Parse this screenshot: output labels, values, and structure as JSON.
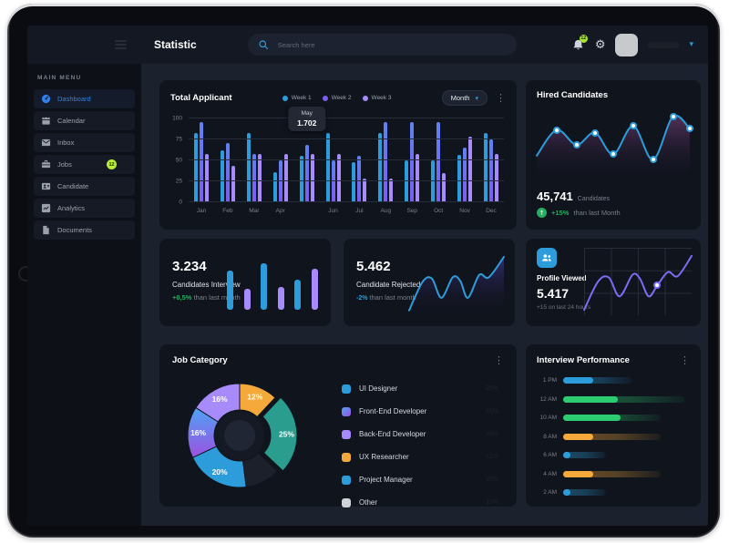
{
  "glyphs": {
    "kebab": "⋮",
    "chevron_down": "▾",
    "arrow_up": "↑",
    "gear": "⚙"
  },
  "topbar": {
    "title": "Statistic",
    "search_placeholder": "Search here",
    "notification_badge": "12"
  },
  "sidebar": {
    "section": "MAIN MENU",
    "items": [
      {
        "label": "Dashboard",
        "icon": "dashboard-icon",
        "active": true
      },
      {
        "label": "Calendar",
        "icon": "calendar-icon"
      },
      {
        "label": "Inbox",
        "icon": "inbox-icon"
      },
      {
        "label": "Jobs",
        "icon": "jobs-icon",
        "badge": "12"
      },
      {
        "label": "Candidate",
        "icon": "candidate-icon"
      },
      {
        "label": "Analytics",
        "icon": "analytics-icon"
      },
      {
        "label": "Documents",
        "icon": "documents-icon"
      }
    ]
  },
  "total_applicant": {
    "title": "Total Applicant",
    "period": "Month",
    "tooltip": {
      "label": "May",
      "value": "1.702"
    }
  },
  "hired": {
    "title": "Hired Candidates",
    "value": "45,741",
    "unit": "Candidates",
    "delta": "+15%",
    "note": "than last Month"
  },
  "interviewed": {
    "value": "3.234",
    "label": "Candidates Interview",
    "delta": "+0,5%",
    "note": "than last month"
  },
  "rejected": {
    "value": "5.462",
    "label": "Candidate Rejected",
    "delta": "-2%",
    "note": "than last month"
  },
  "profile": {
    "title": "Profile Viewed",
    "value": "5.417",
    "note": "+15 on last 24 hours"
  },
  "job_category": {
    "title": "Job Category"
  },
  "performance": {
    "title": "Interview Performance"
  },
  "chart_data": [
    {
      "id": "applicants",
      "type": "bar",
      "title": "Total Applicant",
      "categories": [
        "Jan",
        "Feb",
        "Mar",
        "Apr",
        "May",
        "Jun",
        "Jul",
        "Aug",
        "Sep",
        "Oct",
        "Nov",
        "Dec"
      ],
      "hidden_labels": [
        "May"
      ],
      "series": [
        {
          "name": "Week 1",
          "color": "#2D9CDB",
          "values": [
            83,
            62,
            83,
            36,
            55,
            83,
            48,
            83,
            50,
            50,
            57,
            83
          ]
        },
        {
          "name": "Week 2",
          "color": "#5E82F2",
          "color2": "#7C5CF2",
          "values": [
            96,
            71,
            58,
            50,
            68,
            50,
            55,
            96,
            96,
            96,
            65,
            75
          ]
        },
        {
          "name": "Week 3",
          "color": "#A78BFA",
          "values": [
            58,
            43,
            58,
            58,
            58,
            58,
            28,
            28,
            58,
            35,
            78,
            58
          ]
        }
      ],
      "ylim": [
        0,
        100
      ],
      "yticks": [
        0,
        25,
        50,
        75,
        100
      ],
      "grid": true,
      "legend_position": "top",
      "highlight": {
        "category": "May",
        "value": "1.702"
      }
    },
    {
      "id": "hired",
      "type": "line",
      "stroke": "#2D9CDB",
      "fill_top": "rgba(107,61,110,0.75)",
      "fill_bottom": "rgba(26,20,48,0)",
      "points": [
        [
          0,
          66
        ],
        [
          13,
          28
        ],
        [
          26,
          50
        ],
        [
          38,
          32
        ],
        [
          50,
          64
        ],
        [
          63,
          22
        ],
        [
          76,
          72
        ],
        [
          89,
          8
        ],
        [
          100,
          26
        ]
      ],
      "dots": [
        1,
        2,
        3,
        4,
        5,
        6,
        7,
        8
      ]
    },
    {
      "id": "interviewed",
      "type": "bar",
      "values": [
        72,
        38,
        85,
        42,
        55,
        75
      ],
      "colors": [
        "#2D9CDB",
        "#A78BFA",
        "#2D9CDB",
        "#A78BFA",
        "#2D9CDB",
        "#A78BFA"
      ],
      "ylim": [
        0,
        100
      ]
    },
    {
      "id": "rejected",
      "type": "line",
      "stroke": "#2D9CDB",
      "fill_top": "rgba(70,58,150,0.65)",
      "fill_bottom": "rgba(26,20,48,0)",
      "points": [
        [
          0,
          95
        ],
        [
          14,
          48
        ],
        [
          24,
          42
        ],
        [
          34,
          74
        ],
        [
          46,
          40
        ],
        [
          54,
          46
        ],
        [
          62,
          74
        ],
        [
          74,
          36
        ],
        [
          84,
          40
        ],
        [
          100,
          6
        ]
      ]
    },
    {
      "id": "profile",
      "type": "line",
      "stroke": "#7C6CF4",
      "grid": true,
      "points": [
        [
          0,
          92
        ],
        [
          13,
          50
        ],
        [
          23,
          44
        ],
        [
          33,
          72
        ],
        [
          45,
          40
        ],
        [
          52,
          46
        ],
        [
          60,
          72
        ],
        [
          68,
          56
        ],
        [
          78,
          36
        ],
        [
          87,
          42
        ],
        [
          100,
          12
        ]
      ],
      "dots": [
        7
      ],
      "dot_color": "#7C6CF4"
    },
    {
      "id": "job_category",
      "type": "donut",
      "slices": [
        {
          "label": "UX Researcher",
          "value": 12,
          "color": "#F5A93B",
          "text": "12%"
        },
        {
          "label": "UI Designer",
          "value": 25,
          "color": "#2A9D8F",
          "text": "25%",
          "explode": true
        },
        {
          "label": "Other",
          "value": 11,
          "color": "#1B202B"
        },
        {
          "label": "Project Manager",
          "value": 20,
          "color": "#2D9CDB",
          "text": "20%"
        },
        {
          "label": "Front-End Developer",
          "value": 16,
          "color": "#4FA3F5",
          "color2": "#9B51E0",
          "text": "16%"
        },
        {
          "label": "Back-End Developer",
          "value": 16,
          "color": "#A78BFA",
          "text": "16%"
        }
      ],
      "legend": [
        {
          "label": "UI Designer",
          "color": "#2D9CDB",
          "value": "25%"
        },
        {
          "label": "Front-End Developer",
          "color": "#4FA3F5",
          "color2": "#9B51E0",
          "value": "16%"
        },
        {
          "label": "Back-End Developer",
          "color": "#A78BFA",
          "value": "16%"
        },
        {
          "label": "UX Researcher",
          "color": "#F5A93B",
          "value": "12%"
        },
        {
          "label": "Project Manager",
          "color": "#2D9CDB",
          "value": "20%"
        },
        {
          "label": "Other",
          "color": "#D0D3D8",
          "value": "11%"
        }
      ]
    },
    {
      "id": "performance",
      "type": "hbar",
      "rows": [
        {
          "label": "1 PM",
          "color": "#2D9CDB",
          "bright": 24,
          "total": 55
        },
        {
          "label": "12 AM",
          "color": "#2ECC71",
          "bright": 44,
          "total": 97
        },
        {
          "label": "10 AM",
          "color": "#2ECC71",
          "bright": 46,
          "total": 78
        },
        {
          "label": "8 AM",
          "color": "#F5A93B",
          "bright": 24,
          "total": 78
        },
        {
          "label": "6 AM",
          "color": "#2D9CDB",
          "bright": 6,
          "total": 34
        },
        {
          "label": "4 AM",
          "color": "#F5A93B",
          "bright": 24,
          "total": 78
        },
        {
          "label": "2 AM",
          "color": "#2D9CDB",
          "bright": 6,
          "total": 34
        }
      ]
    }
  ]
}
